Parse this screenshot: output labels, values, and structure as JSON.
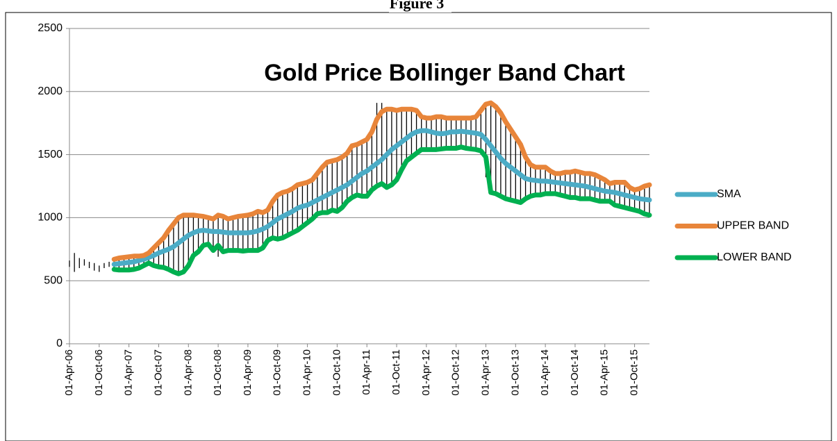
{
  "heading": "Figure 3",
  "chart_data": {
    "type": "line",
    "title": "Gold Price Bollinger Band Chart",
    "categories": [
      "01-Apr-06",
      null,
      null,
      null,
      null,
      null,
      "01-Oct-06",
      null,
      null,
      null,
      null,
      null,
      "01-Apr-07",
      null,
      null,
      null,
      null,
      null,
      "01-Oct-07",
      null,
      null,
      null,
      null,
      null,
      "01-Apr-08",
      null,
      null,
      null,
      null,
      null,
      "01-Oct-08",
      null,
      null,
      null,
      null,
      null,
      "01-Apr-09",
      null,
      null,
      null,
      null,
      null,
      "01-Oct-09",
      null,
      null,
      null,
      null,
      null,
      "01-Apr-10",
      null,
      null,
      null,
      null,
      null,
      "01-Oct-10",
      null,
      null,
      null,
      null,
      null,
      "01-Apr-11",
      null,
      null,
      null,
      null,
      null,
      "01-Oct-11",
      null,
      null,
      null,
      null,
      null,
      "01-Apr-12",
      null,
      null,
      null,
      null,
      null,
      "01-Oct-12",
      null,
      null,
      null,
      null,
      null,
      "01-Apr-13",
      null,
      null,
      null,
      null,
      null,
      "01-Oct-13",
      null,
      null,
      null,
      null,
      null,
      "01-Apr-14",
      null,
      null,
      null,
      null,
      null,
      "01-Oct-14",
      null,
      null,
      null,
      null,
      null,
      "01-Apr-15",
      null,
      null,
      null,
      null,
      null,
      "01-Oct-15",
      null,
      null,
      null
    ],
    "ylim": [
      0,
      2500
    ],
    "yticks": [
      0,
      500,
      1000,
      1500,
      2000,
      2500
    ],
    "grid": true,
    "legend": "right",
    "bar_color": "#000000",
    "high": [
      660,
      720,
      680,
      670,
      650,
      640,
      620,
      640,
      650,
      660,
      670,
      675,
      680,
      685,
      685,
      690,
      710,
      750,
      790,
      830,
      890,
      940,
      990,
      1010,
      1010,
      1010,
      1005,
      1000,
      990,
      980,
      1010,
      1000,
      980,
      990,
      1000,
      1005,
      1010,
      1020,
      1040,
      1030,
      1050,
      1120,
      1170,
      1190,
      1200,
      1220,
      1250,
      1260,
      1270,
      1290,
      1340,
      1390,
      1430,
      1440,
      1450,
      1470,
      1500,
      1560,
      1570,
      1590,
      1610,
      1670,
      1910,
      1910,
      1850,
      1850,
      1840,
      1850,
      1850,
      1850,
      1840,
      1790,
      1780,
      1780,
      1790,
      1790,
      1780,
      1780,
      1780,
      1780,
      1780,
      1780,
      1790,
      1840,
      1890,
      1900,
      1870,
      1820,
      1750,
      1690,
      1630,
      1570,
      1470,
      1410,
      1390,
      1390,
      1390,
      1360,
      1340,
      1340,
      1350,
      1350,
      1360,
      1350,
      1340,
      1340,
      1330,
      1310,
      1290,
      1260,
      1270,
      1270,
      1270,
      1230,
      1210,
      1220,
      1240,
      1250
    ],
    "low": [
      610,
      570,
      600,
      620,
      600,
      580,
      570,
      600,
      610,
      600,
      595,
      595,
      595,
      600,
      610,
      630,
      650,
      630,
      620,
      615,
      600,
      580,
      565,
      580,
      630,
      710,
      740,
      790,
      800,
      750,
      690,
      740,
      750,
      750,
      750,
      745,
      750,
      750,
      750,
      770,
      830,
      850,
      840,
      850,
      870,
      890,
      910,
      940,
      970,
      1000,
      1040,
      1050,
      1050,
      1070,
      1060,
      1090,
      1140,
      1170,
      1190,
      1180,
      1180,
      1230,
      1260,
      1280,
      1250,
      1270,
      1310,
      1390,
      1460,
      1490,
      1520,
      1550,
      1550,
      1550,
      1550,
      1555,
      1560,
      1560,
      1560,
      1570,
      1560,
      1555,
      1550,
      1540,
      1320,
      1210,
      1200,
      1180,
      1160,
      1150,
      1140,
      1130,
      1160,
      1180,
      1190,
      1190,
      1200,
      1200,
      1200,
      1190,
      1180,
      1170,
      1170,
      1160,
      1160,
      1160,
      1150,
      1140,
      1140,
      1140,
      1110,
      1100,
      1090,
      1080,
      1070,
      1060,
      1040,
      1030
    ],
    "series": [
      {
        "name": "SMA",
        "color": "#4bacc6",
        "values": [
          null,
          null,
          null,
          null,
          null,
          null,
          null,
          null,
          null,
          630,
          635,
          640,
          645,
          650,
          660,
          670,
          685,
          700,
          720,
          735,
          750,
          770,
          800,
          830,
          860,
          880,
          895,
          900,
          895,
          890,
          890,
          885,
          880,
          880,
          880,
          880,
          880,
          885,
          895,
          910,
          930,
          960,
          990,
          1010,
          1030,
          1050,
          1075,
          1090,
          1100,
          1120,
          1140,
          1160,
          1180,
          1200,
          1220,
          1240,
          1260,
          1290,
          1320,
          1350,
          1370,
          1400,
          1430,
          1460,
          1500,
          1540,
          1570,
          1600,
          1630,
          1660,
          1680,
          1690,
          1690,
          1680,
          1670,
          1665,
          1670,
          1680,
          1680,
          1685,
          1680,
          1675,
          1670,
          1660,
          1620,
          1570,
          1520,
          1470,
          1430,
          1400,
          1370,
          1340,
          1310,
          1300,
          1295,
          1290,
          1290,
          1285,
          1280,
          1275,
          1270,
          1265,
          1260,
          1255,
          1250,
          1240,
          1230,
          1220,
          1210,
          1205,
          1200,
          1190,
          1180,
          1170,
          1160,
          1150,
          1145,
          1140
        ]
      },
      {
        "name": "UPPER BAND",
        "color": "#e8853a",
        "values": [
          null,
          null,
          null,
          null,
          null,
          null,
          null,
          null,
          null,
          670,
          680,
          685,
          690,
          695,
          695,
          700,
          720,
          760,
          800,
          840,
          900,
          950,
          1000,
          1020,
          1020,
          1020,
          1015,
          1010,
          1000,
          990,
          1020,
          1010,
          990,
          1000,
          1010,
          1015,
          1020,
          1030,
          1050,
          1040,
          1060,
          1130,
          1180,
          1200,
          1210,
          1230,
          1260,
          1270,
          1280,
          1300,
          1350,
          1400,
          1440,
          1450,
          1460,
          1480,
          1510,
          1570,
          1580,
          1600,
          1620,
          1680,
          1780,
          1840,
          1860,
          1860,
          1850,
          1860,
          1860,
          1860,
          1850,
          1800,
          1790,
          1790,
          1800,
          1800,
          1790,
          1790,
          1790,
          1790,
          1790,
          1790,
          1800,
          1850,
          1900,
          1910,
          1880,
          1830,
          1760,
          1700,
          1640,
          1580,
          1480,
          1420,
          1400,
          1400,
          1400,
          1370,
          1350,
          1350,
          1360,
          1360,
          1370,
          1360,
          1350,
          1350,
          1340,
          1320,
          1300,
          1270,
          1280,
          1280,
          1280,
          1240,
          1220,
          1230,
          1250,
          1260
        ]
      },
      {
        "name": "LOWER BAND",
        "color": "#00b050",
        "values": [
          null,
          null,
          null,
          null,
          null,
          null,
          null,
          null,
          null,
          590,
          585,
          585,
          585,
          590,
          600,
          620,
          640,
          620,
          610,
          605,
          590,
          570,
          555,
          570,
          620,
          700,
          730,
          780,
          790,
          740,
          780,
          730,
          740,
          740,
          740,
          735,
          740,
          740,
          740,
          760,
          820,
          840,
          830,
          840,
          860,
          880,
          900,
          930,
          960,
          990,
          1030,
          1040,
          1040,
          1060,
          1050,
          1080,
          1130,
          1160,
          1180,
          1170,
          1170,
          1220,
          1250,
          1270,
          1240,
          1260,
          1300,
          1380,
          1450,
          1480,
          1510,
          1540,
          1540,
          1540,
          1540,
          1545,
          1550,
          1550,
          1550,
          1560,
          1550,
          1545,
          1540,
          1530,
          1480,
          1200,
          1190,
          1170,
          1150,
          1140,
          1130,
          1120,
          1150,
          1170,
          1180,
          1180,
          1190,
          1190,
          1190,
          1180,
          1170,
          1160,
          1160,
          1150,
          1150,
          1150,
          1140,
          1130,
          1130,
          1130,
          1100,
          1090,
          1080,
          1070,
          1060,
          1050,
          1030,
          1020
        ]
      }
    ]
  }
}
